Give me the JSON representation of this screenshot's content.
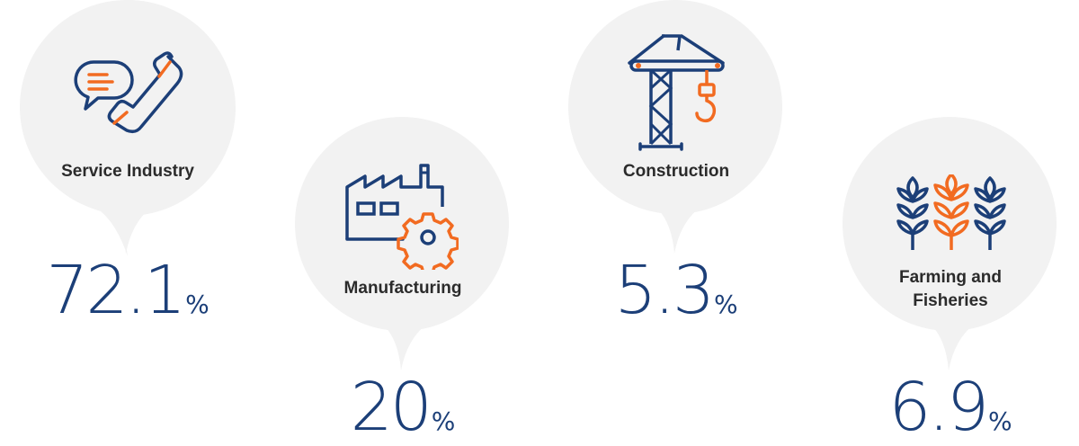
{
  "colors": {
    "bubble": "#f2f2f2",
    "navy": "#1c3f78",
    "orange": "#f26b21",
    "label": "#2b2b2b"
  },
  "chart_data": {
    "type": "table",
    "categories": [
      "Service Industry",
      "Manufacturing",
      "Construction",
      "Farming and Fisheries"
    ],
    "values": [
      72.1,
      20,
      5.3,
      6.9
    ],
    "unit": "%"
  },
  "sectors": [
    {
      "label": "Service Industry",
      "value": "72.1",
      "unit": "%",
      "icon": "phone-chat-icon"
    },
    {
      "label": "Manufacturing",
      "value": "20",
      "unit": "%",
      "icon": "factory-gear-icon"
    },
    {
      "label": "Construction",
      "value": "5.3",
      "unit": "%",
      "icon": "crane-icon"
    },
    {
      "label": "Farming and Fisheries",
      "value": "6.9",
      "unit": "%",
      "icon": "wheat-icon"
    }
  ]
}
